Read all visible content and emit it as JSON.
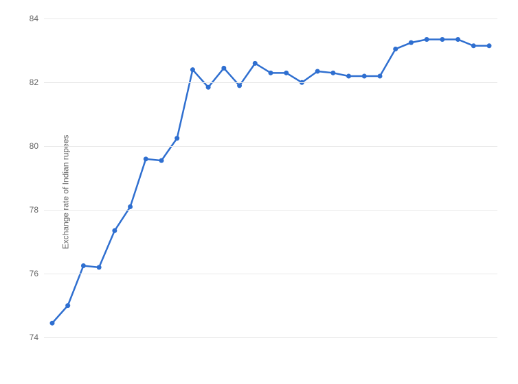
{
  "chart": {
    "type": "line",
    "ylabel": "Exchange rate of Indian rupees",
    "ylabel_fontsize": 12,
    "ylabel_color": "#666666",
    "background_color": "#ffffff",
    "grid_color": "#e8e8e8",
    "line_color": "#2f6fd0",
    "marker_color": "#2f6fd0",
    "line_width": 2.5,
    "marker_radius": 3.5,
    "ylim": [
      73.4,
      84.2
    ],
    "ytick_values": [
      74,
      76,
      78,
      80,
      82,
      84
    ],
    "ytick_fontsize": 12,
    "ytick_color": "#666666",
    "values": [
      74.45,
      75.0,
      76.25,
      76.2,
      77.35,
      78.1,
      79.6,
      79.55,
      80.25,
      82.4,
      81.85,
      82.45,
      81.9,
      82.6,
      82.3,
      82.3,
      82.0,
      82.35,
      82.3,
      82.2,
      82.2,
      82.2,
      83.05,
      83.25,
      83.35,
      83.35,
      83.35,
      83.15,
      83.15
    ],
    "n_points": 29
  }
}
